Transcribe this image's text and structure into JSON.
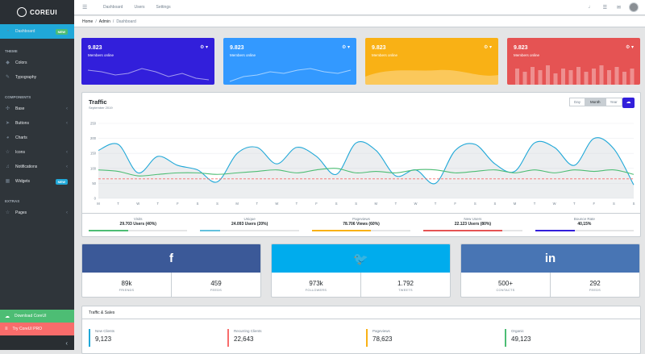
{
  "brand": {
    "name": "COREUI"
  },
  "sidebar": {
    "dashboard": {
      "label": "Dashboard",
      "badge": "NEW"
    },
    "theme_title": "THEME",
    "theme_items": [
      {
        "label": "Colors"
      },
      {
        "label": "Typography"
      }
    ],
    "components_title": "COMPONENTS",
    "components_items": [
      {
        "label": "Base",
        "chevron": "‹"
      },
      {
        "label": "Buttons",
        "chevron": "‹"
      },
      {
        "label": "Charts"
      },
      {
        "label": "Icons",
        "chevron": "‹"
      },
      {
        "label": "Notifications",
        "chevron": "‹"
      },
      {
        "label": "Widgets",
        "badge": "NEW"
      }
    ],
    "extras_title": "EXTRAS",
    "extras_items": [
      {
        "label": "Pages",
        "chevron": "‹"
      }
    ],
    "download": "Download CoreUI",
    "try_pro": "Try CoreUI PRO",
    "toggle": "‹"
  },
  "header": {
    "menu_icon": "☰",
    "links": [
      "Dashboard",
      "Users",
      "Settings"
    ]
  },
  "breadcrumb": {
    "items": [
      "Home",
      "Admin",
      "Dashboard"
    ],
    "separator": "/"
  },
  "stats": [
    {
      "value": "9.823",
      "label": "Members online",
      "color": "#321fdb"
    },
    {
      "value": "9.823",
      "label": "Members online",
      "color": "#39f"
    },
    {
      "value": "9.823",
      "label": "Members online",
      "color": "#f9b115"
    },
    {
      "value": "9.823",
      "label": "Members online",
      "color": "#e55353"
    }
  ],
  "traffic": {
    "title": "Traffic",
    "subtitle": "September 2019",
    "periods": [
      "Day",
      "Month",
      "Year"
    ],
    "selected_period": "Month",
    "footer": [
      {
        "label": "Visits",
        "value": "29.703 Users (40%)",
        "progress": 0.4,
        "color": "#4dbd74"
      },
      {
        "label": "Unique",
        "value": "24.093 Users (20%)",
        "progress": 0.2,
        "color": "#63c2de"
      },
      {
        "label": "Pageviews",
        "value": "78.706 Views (60%)",
        "progress": 0.6,
        "color": "#f9b115"
      },
      {
        "label": "New Users",
        "value": "22.123 Users (80%)",
        "progress": 0.8,
        "color": "#e55353"
      },
      {
        "label": "Bounce Rate",
        "value": "40,15%",
        "progress": 0.4,
        "color": "#321fdb"
      }
    ]
  },
  "chart_data": {
    "type": "line",
    "ylim": [
      0,
      250
    ],
    "yticks": [
      0,
      50,
      100,
      150,
      200,
      250
    ],
    "x": [
      "M",
      "T",
      "W",
      "T",
      "F",
      "S",
      "S",
      "M",
      "T",
      "W",
      "T",
      "F",
      "S",
      "S",
      "M",
      "T",
      "W",
      "T",
      "F",
      "S",
      "S",
      "M",
      "T",
      "W",
      "T",
      "F",
      "S",
      "S"
    ],
    "series": [
      {
        "values": [
          160,
          180,
          85,
          140,
          110,
          95,
          55,
          150,
          170,
          115,
          170,
          140,
          80,
          185,
          160,
          75,
          95,
          50,
          160,
          180,
          115,
          90,
          185,
          170,
          110,
          200,
          165,
          45
        ],
        "color": "#20a8d8"
      },
      {
        "values": [
          95,
          90,
          75,
          80,
          85,
          85,
          80,
          85,
          90,
          95,
          85,
          95,
          100,
          85,
          90,
          85,
          95,
          95,
          85,
          90,
          95,
          85,
          95,
          85,
          95,
          90,
          95,
          80
        ],
        "color": "#4dbd74"
      },
      {
        "values": [
          65,
          65,
          65,
          65,
          65,
          65,
          65,
          65,
          65,
          65,
          65,
          65,
          65,
          65,
          65,
          65,
          65,
          65,
          65,
          65,
          65,
          65,
          65,
          65,
          65,
          65,
          65,
          65
        ],
        "color": "#f86c6b"
      }
    ]
  },
  "social": [
    {
      "icon": "f",
      "color": "#3b5998",
      "stats": [
        {
          "value": "89k",
          "label": "FRIENDS"
        },
        {
          "value": "459",
          "label": "FEEDS"
        }
      ]
    },
    {
      "icon": "🐦",
      "color": "#00aced",
      "stats": [
        {
          "value": "973k",
          "label": "FOLLOWERS"
        },
        {
          "value": "1.792",
          "label": "TWEETS"
        }
      ]
    },
    {
      "icon": "in",
      "color": "#4875b4",
      "stats": [
        {
          "value": "500+",
          "label": "CONTACTS"
        },
        {
          "value": "292",
          "label": "FEEDS"
        }
      ]
    }
  ],
  "sales": {
    "title": "Traffic & Sales",
    "kpis": [
      {
        "label": "New Clients",
        "value": "9,123",
        "color": "#20a8d8"
      },
      {
        "label": "Recurring Clients",
        "value": "22,643",
        "color": "#f86c6b"
      },
      {
        "label": "Pageviews",
        "value": "78,623",
        "color": "#f9b115"
      },
      {
        "label": "Organic",
        "value": "49,123",
        "color": "#4dbd74"
      }
    ]
  }
}
